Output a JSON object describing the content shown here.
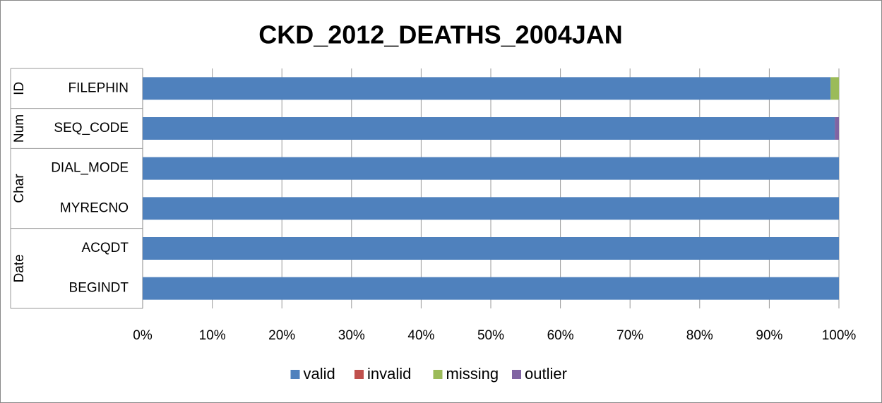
{
  "chart_data": {
    "type": "stacked_bar_horizontal",
    "title": "CKD_2012_DEATHS_2004JAN",
    "groups": [
      {
        "name": "ID",
        "categories": [
          "FILEPHIN"
        ]
      },
      {
        "name": "Num",
        "categories": [
          "SEQ_CODE"
        ]
      },
      {
        "name": "Char",
        "categories": [
          "DIAL_MODE",
          "MYRECNO"
        ]
      },
      {
        "name": "Date",
        "categories": [
          "ACQDT",
          "BEGINDT"
        ]
      }
    ],
    "series": [
      {
        "name": "valid",
        "color": "#4f81bd",
        "values": [
          98.8,
          99.4,
          100,
          100,
          100,
          100
        ]
      },
      {
        "name": "invalid",
        "color": "#c0504d",
        "values": [
          0,
          0,
          0,
          0,
          0,
          0
        ]
      },
      {
        "name": "missing",
        "color": "#9bbb59",
        "values": [
          1.2,
          0,
          0,
          0,
          0,
          0
        ]
      },
      {
        "name": "outlier",
        "color": "#8064a2",
        "values": [
          0,
          0.6,
          0,
          0,
          0,
          0
        ]
      }
    ],
    "xlim": [
      0,
      100
    ],
    "xticks": [
      {
        "value": 0,
        "label": "0%"
      },
      {
        "value": 10,
        "label": "10%"
      },
      {
        "value": 20,
        "label": "20%"
      },
      {
        "value": 30,
        "label": "30%"
      },
      {
        "value": 40,
        "label": "40%"
      },
      {
        "value": 50,
        "label": "50%"
      },
      {
        "value": 60,
        "label": "60%"
      },
      {
        "value": 70,
        "label": "70%"
      },
      {
        "value": 80,
        "label": "80%"
      },
      {
        "value": 90,
        "label": "90%"
      },
      {
        "value": 100,
        "label": "100%"
      }
    ],
    "grid": true,
    "legend": "bottom"
  }
}
